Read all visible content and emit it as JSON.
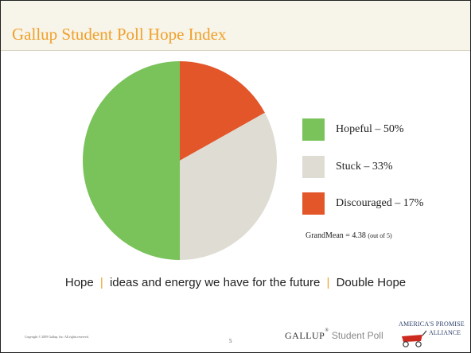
{
  "slide": {
    "title": "Gallup Student Poll Hope Index",
    "grandmean_label": "GrandMean = 4.38",
    "grandmean_note": "(out of 5)",
    "tagline": {
      "word1": "Hope",
      "middle": "ideas and energy we have for the future",
      "word2": "Double Hope",
      "separator": "|"
    },
    "copyright": "Copyright © 2009 Gallup, Inc. All rights reserved.",
    "page_number": "5",
    "footer_logo": {
      "wordmark": "GALLUP",
      "sub": "Student Poll"
    },
    "partner_logo": {
      "line1": "AMERICA'S PROMISE",
      "line2": "ALLIANCE"
    }
  },
  "chart_data": {
    "type": "pie",
    "categories": [
      "Hopeful",
      "Stuck",
      "Discouraged"
    ],
    "values": [
      50,
      33,
      17
    ],
    "labels": [
      "Hopeful – 50%",
      "Stuck – 33%",
      "Discouraged – 17%"
    ],
    "colors": [
      "#7ac35a",
      "#dedcd3",
      "#e2562a"
    ],
    "start": "12 o'clock",
    "direction": "clockwise, Discouraged first",
    "legend_position": "right"
  }
}
